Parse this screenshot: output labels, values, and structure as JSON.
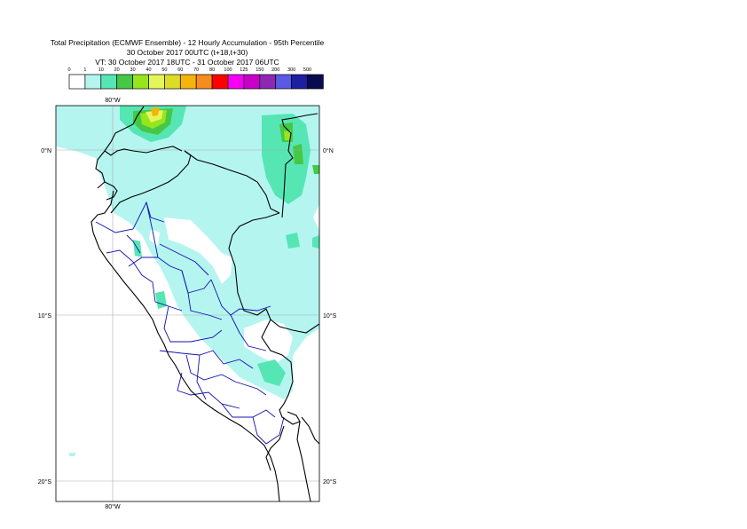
{
  "header": {
    "line1": "Total Precipitation (ECMWF Ensemble) - 12 Hourly Accumulation - 95th Percentile",
    "line2": "30 October 2017 00UTC (t+18,t+30)",
    "line3": "VT: 30 October 2017 18UTC - 31 October 2017 06UTC"
  },
  "legend": {
    "thresholds": [
      "0",
      "1",
      "10",
      "20",
      "30",
      "40",
      "50",
      "60",
      "70",
      "80",
      "100",
      "125",
      "150",
      "200",
      "300",
      "500"
    ],
    "colors": [
      "#ffffff",
      "#b4f5f0",
      "#55e6b4",
      "#46c846",
      "#96e61e",
      "#e6f55a",
      "#dcdc28",
      "#f5b40a",
      "#f58c1e",
      "#ff0000",
      "#f500f5",
      "#c800c8",
      "#8c28b4",
      "#5a5ae6",
      "#1e1ea0",
      "#0a0a50"
    ]
  },
  "map": {
    "lon_labels": [
      "80°W",
      "80°W"
    ],
    "lat_labels_left": [
      "0°N",
      "10°S",
      "20°S"
    ],
    "lat_labels_right": [
      "0°N",
      "10°S",
      "20°S"
    ],
    "colors": {
      "light": "#b4f5f0",
      "medium": "#55e6b4",
      "green": "#46c846",
      "yellowgreen": "#96e61e",
      "yellow": "#e6f55a",
      "orange": "#f5b40a",
      "country_border": "#000000",
      "region_border": "#0000aa",
      "grid": "#aaaaaa"
    }
  }
}
